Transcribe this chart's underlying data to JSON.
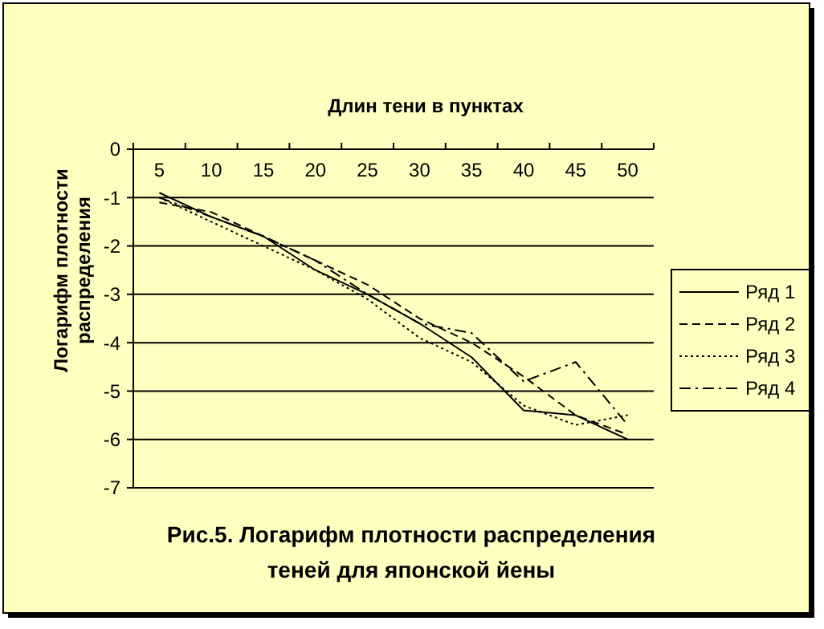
{
  "chart_data": {
    "type": "line",
    "xlabel": "Длин тени в пунктах",
    "ylabel": "Логарифм плотности распределения",
    "annotations": [
      "Рис.5. Логарифм плотности распределения теней для японской йены"
    ],
    "categories": [
      "5",
      "10",
      "15",
      "20",
      "25",
      "30",
      "35",
      "40",
      "45",
      "50"
    ],
    "series": [
      {
        "name": "Ряд 1",
        "color": "#000000",
        "line_style": "solid",
        "values": [
          -0.9,
          -1.4,
          -1.8,
          -2.5,
          -3.0,
          -3.6,
          -4.3,
          -5.4,
          -5.5,
          -6.0
        ]
      },
      {
        "name": "Ряд 2",
        "color": "#000000",
        "line_style": "dashed",
        "values": [
          -1.1,
          -1.3,
          -1.8,
          -2.3,
          -2.8,
          -3.5,
          -4.0,
          -4.7,
          -5.5,
          -5.9
        ]
      },
      {
        "name": "Ряд 3",
        "color": "#000000",
        "line_style": "dotted",
        "values": [
          -1.0,
          -1.5,
          -2.0,
          -2.5,
          -3.1,
          -3.9,
          -4.4,
          -5.3,
          -5.7,
          -5.5
        ]
      },
      {
        "name": "Ряд 4",
        "color": "#000000",
        "line_style": "dashdot",
        "values": [
          -1.0,
          -1.4,
          -1.8,
          -2.3,
          -3.0,
          -3.6,
          -3.8,
          -4.8,
          -4.4,
          -5.7
        ]
      }
    ],
    "ylim": [
      -7,
      0
    ],
    "yticks": [
      -7,
      -6,
      -5,
      -4,
      -3,
      -2,
      -1,
      0
    ],
    "grid": "y",
    "legend": "right"
  }
}
